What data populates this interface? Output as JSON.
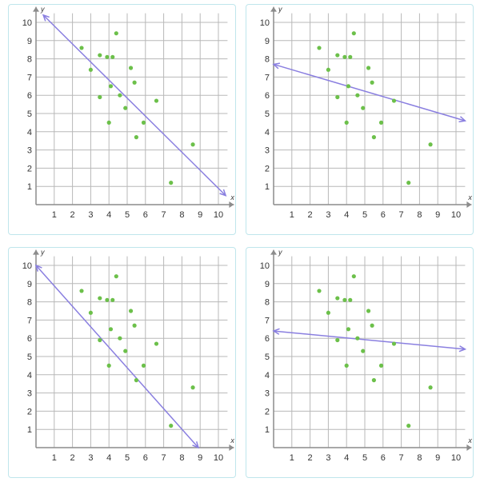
{
  "style": {
    "grid_color": "#b8b8b8",
    "axis_color": "#8c8c8c",
    "point_color": "#6cc04a",
    "line_color": "#8a7fe0",
    "card_border": "#bfe6ec"
  },
  "chart_data": [
    {
      "type": "scatter",
      "xlabel": "x",
      "ylabel": "y",
      "xlim": [
        0,
        10.5
      ],
      "ylim": [
        0,
        10.5
      ],
      "x_ticks": [
        "1",
        "2",
        "3",
        "4",
        "5",
        "6",
        "7",
        "8",
        "9",
        "10"
      ],
      "y_ticks": [
        "1",
        "2",
        "3",
        "4",
        "5",
        "6",
        "7",
        "8",
        "9",
        "10"
      ],
      "grid": true,
      "points": [
        [
          2.5,
          8.6
        ],
        [
          3.0,
          7.4
        ],
        [
          3.5,
          8.2
        ],
        [
          3.5,
          5.9
        ],
        [
          3.9,
          8.1
        ],
        [
          4.2,
          8.1
        ],
        [
          4.4,
          9.4
        ],
        [
          4.1,
          6.5
        ],
        [
          4.6,
          6.0
        ],
        [
          4.0,
          4.5
        ],
        [
          4.9,
          5.3
        ],
        [
          5.2,
          7.5
        ],
        [
          5.4,
          6.7
        ],
        [
          5.9,
          4.5
        ],
        [
          5.5,
          3.7
        ],
        [
          6.6,
          5.7
        ],
        [
          7.4,
          1.2
        ],
        [
          8.6,
          3.3
        ]
      ],
      "line": [
        [
          0.4,
          10.4
        ],
        [
          10.4,
          0.5
        ]
      ]
    },
    {
      "type": "scatter",
      "xlabel": "x",
      "ylabel": "y",
      "xlim": [
        0,
        10.5
      ],
      "ylim": [
        0,
        10.5
      ],
      "x_ticks": [
        "1",
        "2",
        "3",
        "4",
        "5",
        "6",
        "7",
        "8",
        "9",
        "10"
      ],
      "y_ticks": [
        "1",
        "2",
        "3",
        "4",
        "5",
        "6",
        "7",
        "8",
        "9",
        "10"
      ],
      "grid": true,
      "points": [
        [
          2.5,
          8.6
        ],
        [
          3.0,
          7.4
        ],
        [
          3.5,
          8.2
        ],
        [
          3.5,
          5.9
        ],
        [
          3.9,
          8.1
        ],
        [
          4.2,
          8.1
        ],
        [
          4.4,
          9.4
        ],
        [
          4.1,
          6.5
        ],
        [
          4.6,
          6.0
        ],
        [
          4.0,
          4.5
        ],
        [
          4.9,
          5.3
        ],
        [
          5.2,
          7.5
        ],
        [
          5.4,
          6.7
        ],
        [
          5.9,
          4.5
        ],
        [
          5.5,
          3.7
        ],
        [
          6.6,
          5.7
        ],
        [
          7.4,
          1.2
        ],
        [
          8.6,
          3.3
        ]
      ],
      "line": [
        [
          0,
          7.7
        ],
        [
          10.5,
          4.6
        ]
      ]
    },
    {
      "type": "scatter",
      "xlabel": "x",
      "ylabel": "y",
      "xlim": [
        0,
        10.5
      ],
      "ylim": [
        0,
        10.5
      ],
      "x_ticks": [
        "1",
        "2",
        "3",
        "4",
        "5",
        "6",
        "7",
        "8",
        "9",
        "10"
      ],
      "y_ticks": [
        "1",
        "2",
        "3",
        "4",
        "5",
        "6",
        "7",
        "8",
        "9",
        "10"
      ],
      "grid": true,
      "points": [
        [
          2.5,
          8.6
        ],
        [
          3.0,
          7.4
        ],
        [
          3.5,
          8.2
        ],
        [
          3.5,
          5.9
        ],
        [
          3.9,
          8.1
        ],
        [
          4.2,
          8.1
        ],
        [
          4.4,
          9.4
        ],
        [
          4.1,
          6.5
        ],
        [
          4.6,
          6.0
        ],
        [
          4.0,
          4.5
        ],
        [
          4.9,
          5.3
        ],
        [
          5.2,
          7.5
        ],
        [
          5.4,
          6.7
        ],
        [
          5.9,
          4.5
        ],
        [
          5.5,
          3.7
        ],
        [
          6.6,
          5.7
        ],
        [
          7.4,
          1.2
        ],
        [
          8.6,
          3.3
        ]
      ],
      "line": [
        [
          0,
          10
        ],
        [
          8.9,
          0
        ]
      ]
    },
    {
      "type": "scatter",
      "xlabel": "x",
      "ylabel": "y",
      "xlim": [
        0,
        10.5
      ],
      "ylim": [
        0,
        10.5
      ],
      "x_ticks": [
        "1",
        "2",
        "3",
        "4",
        "5",
        "6",
        "7",
        "8",
        "9",
        "10"
      ],
      "y_ticks": [
        "1",
        "2",
        "3",
        "4",
        "5",
        "6",
        "7",
        "8",
        "9",
        "10"
      ],
      "grid": true,
      "points": [
        [
          2.5,
          8.6
        ],
        [
          3.0,
          7.4
        ],
        [
          3.5,
          8.2
        ],
        [
          3.5,
          5.9
        ],
        [
          3.9,
          8.1
        ],
        [
          4.2,
          8.1
        ],
        [
          4.4,
          9.4
        ],
        [
          4.1,
          6.5
        ],
        [
          4.6,
          6.0
        ],
        [
          4.0,
          4.5
        ],
        [
          4.9,
          5.3
        ],
        [
          5.2,
          7.5
        ],
        [
          5.4,
          6.7
        ],
        [
          5.9,
          4.5
        ],
        [
          5.5,
          3.7
        ],
        [
          6.6,
          5.7
        ],
        [
          7.4,
          1.2
        ],
        [
          8.6,
          3.3
        ]
      ],
      "line": [
        [
          0,
          6.4
        ],
        [
          10.5,
          5.4
        ]
      ]
    }
  ]
}
